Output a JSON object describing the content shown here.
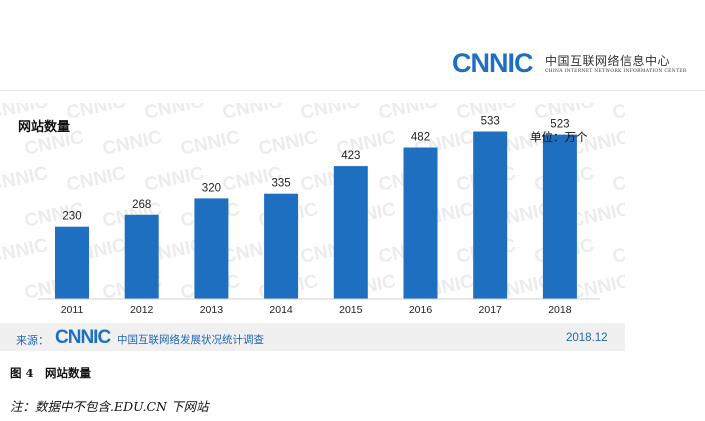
{
  "header": {
    "logo_mark": "CNNIC",
    "logo_cn": "中国互联网络信息中心",
    "logo_en": "CHINA INTERNET NETWORK INFORMATION CENTER"
  },
  "watermark": "CNNIC",
  "chart_data": {
    "type": "bar",
    "title": "网站数量",
    "unit": "单位：万个",
    "categories": [
      "2011",
      "2012",
      "2013",
      "2014",
      "2015",
      "2016",
      "2017",
      "2018"
    ],
    "values": [
      230,
      268,
      320,
      335,
      423,
      482,
      533,
      523
    ],
    "ylim": [
      0,
      560
    ],
    "bar_color": "#1e6fc0",
    "grid": false,
    "legend": "none"
  },
  "source": {
    "prefix": "来源：",
    "logo_mark": "CNNIC",
    "text": "中国互联网络发展状况统计调查",
    "date": "2018.12"
  },
  "caption": "图 4　网站数量",
  "note": "注：数据中不包含.EDU.CN 下网站"
}
